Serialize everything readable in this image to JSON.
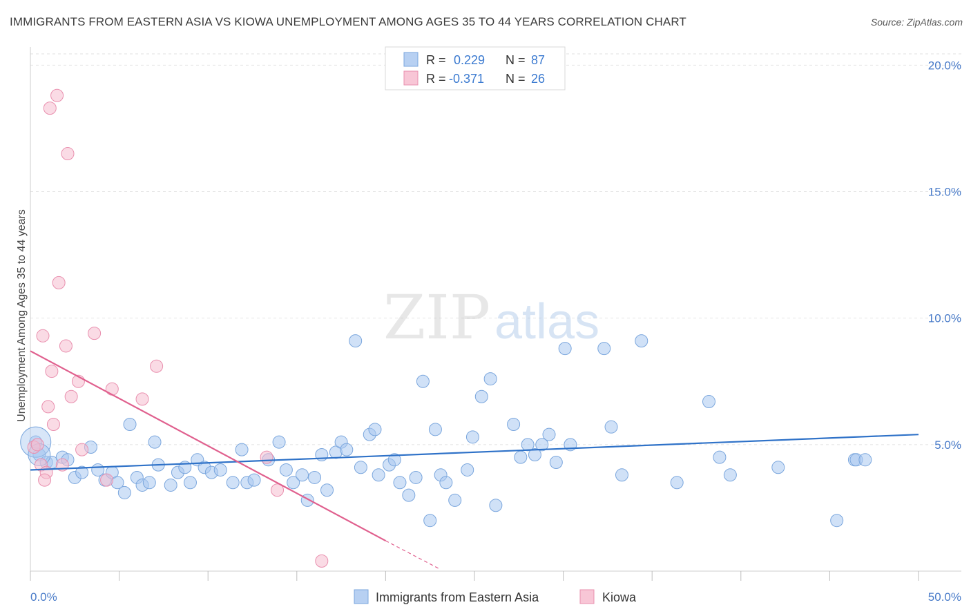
{
  "header": {
    "title": "IMMIGRANTS FROM EASTERN ASIA VS KIOWA UNEMPLOYMENT AMONG AGES 35 TO 44 YEARS CORRELATION CHART",
    "source": "Source: ZipAtlas.com"
  },
  "watermark": {
    "zip": "ZIP",
    "atlas": "atlas"
  },
  "legend_top": {
    "rows": [
      {
        "r_label": "R =",
        "r_value": "0.229",
        "n_label": "N =",
        "n_value": "87"
      },
      {
        "r_label": "R =",
        "r_value": "-0.371",
        "n_label": "N =",
        "n_value": "26"
      }
    ]
  },
  "chart_data": {
    "type": "scatter",
    "title": "IMMIGRANTS FROM EASTERN ASIA VS KIOWA UNEMPLOYMENT AMONG AGES 35 TO 44 YEARS CORRELATION CHART",
    "xlabel": "",
    "ylabel": "Unemployment Among Ages 35 to 44 years",
    "xlim": [
      0,
      50
    ],
    "ylim": [
      0,
      20.5
    ],
    "x_tick_labels": [
      "0.0%",
      "50.0%"
    ],
    "y_ticks": [
      5,
      10,
      15,
      20
    ],
    "y_tick_labels": [
      "5.0%",
      "10.0%",
      "15.0%",
      "20.0%"
    ],
    "grid": true,
    "legend_position": "bottom",
    "series": [
      {
        "name": "Immigrants from Eastern Asia",
        "color": "#a9c8f0",
        "stroke": "#7aa6dd",
        "line_color": "#2f72c8",
        "trend": {
          "x0": 0,
          "y0": 4.0,
          "x1": 50,
          "y1": 5.4
        },
        "points": [
          [
            0.3,
            5.1
          ],
          [
            0.5,
            4.6
          ],
          [
            0.9,
            4.3
          ],
          [
            1.2,
            4.3
          ],
          [
            1.8,
            4.5
          ],
          [
            2.1,
            4.4
          ],
          [
            2.5,
            3.7
          ],
          [
            2.9,
            3.9
          ],
          [
            3.4,
            4.9
          ],
          [
            3.8,
            4.0
          ],
          [
            4.2,
            3.6
          ],
          [
            4.6,
            3.9
          ],
          [
            4.9,
            3.5
          ],
          [
            5.3,
            3.1
          ],
          [
            5.6,
            5.8
          ],
          [
            6.0,
            3.7
          ],
          [
            6.3,
            3.4
          ],
          [
            6.7,
            3.5
          ],
          [
            7.0,
            5.1
          ],
          [
            7.2,
            4.2
          ],
          [
            7.9,
            3.4
          ],
          [
            8.3,
            3.9
          ],
          [
            8.7,
            4.1
          ],
          [
            9.0,
            3.5
          ],
          [
            9.4,
            4.4
          ],
          [
            9.8,
            4.1
          ],
          [
            10.2,
            3.9
          ],
          [
            10.7,
            4.0
          ],
          [
            11.4,
            3.5
          ],
          [
            11.9,
            4.8
          ],
          [
            12.2,
            3.5
          ],
          [
            12.6,
            3.6
          ],
          [
            13.4,
            4.4
          ],
          [
            14.0,
            5.1
          ],
          [
            14.4,
            4.0
          ],
          [
            14.8,
            3.5
          ],
          [
            15.3,
            3.8
          ],
          [
            15.6,
            2.8
          ],
          [
            16.0,
            3.7
          ],
          [
            16.4,
            4.6
          ],
          [
            16.7,
            3.2
          ],
          [
            17.2,
            4.7
          ],
          [
            17.5,
            5.1
          ],
          [
            17.8,
            4.8
          ],
          [
            18.3,
            9.1
          ],
          [
            18.6,
            4.1
          ],
          [
            19.1,
            5.4
          ],
          [
            19.4,
            5.6
          ],
          [
            19.6,
            3.8
          ],
          [
            20.2,
            4.2
          ],
          [
            20.5,
            4.4
          ],
          [
            20.8,
            3.5
          ],
          [
            21.3,
            3.0
          ],
          [
            21.7,
            3.7
          ],
          [
            22.1,
            7.5
          ],
          [
            22.5,
            2.0
          ],
          [
            22.8,
            5.6
          ],
          [
            23.1,
            3.8
          ],
          [
            23.4,
            3.5
          ],
          [
            23.9,
            2.8
          ],
          [
            24.6,
            4.0
          ],
          [
            24.9,
            5.3
          ],
          [
            25.4,
            6.9
          ],
          [
            25.9,
            7.6
          ],
          [
            26.2,
            2.6
          ],
          [
            27.2,
            5.8
          ],
          [
            27.6,
            4.5
          ],
          [
            28.0,
            5.0
          ],
          [
            28.4,
            4.6
          ],
          [
            28.8,
            5.0
          ],
          [
            29.2,
            5.4
          ],
          [
            29.6,
            4.3
          ],
          [
            30.1,
            8.8
          ],
          [
            30.4,
            5.0
          ],
          [
            32.3,
            8.8
          ],
          [
            32.7,
            5.7
          ],
          [
            33.3,
            3.8
          ],
          [
            34.4,
            9.1
          ],
          [
            36.4,
            3.5
          ],
          [
            38.2,
            6.7
          ],
          [
            38.8,
            4.5
          ],
          [
            39.4,
            3.8
          ],
          [
            42.1,
            4.1
          ],
          [
            45.4,
            2.0
          ],
          [
            46.4,
            4.4
          ],
          [
            46.5,
            4.4
          ],
          [
            47.0,
            4.4
          ]
        ],
        "big_points": [
          [
            0.3,
            5.1
          ],
          [
            0.5,
            4.6
          ]
        ]
      },
      {
        "name": "Kiowa",
        "color": "#f6bed0",
        "stroke": "#e98fae",
        "line_color": "#e0608e",
        "trend": {
          "x0": 0,
          "y0": 8.7,
          "x1": 20,
          "y1": 1.2
        },
        "trend_dash_to": {
          "x": 23,
          "y": 0.1
        },
        "points": [
          [
            0.2,
            4.9
          ],
          [
            0.4,
            5.0
          ],
          [
            0.6,
            4.2
          ],
          [
            0.9,
            3.9
          ],
          [
            0.7,
            9.3
          ],
          [
            0.8,
            3.6
          ],
          [
            1.0,
            6.5
          ],
          [
            1.1,
            18.3
          ],
          [
            1.2,
            7.9
          ],
          [
            1.3,
            5.8
          ],
          [
            1.5,
            18.8
          ],
          [
            1.6,
            11.4
          ],
          [
            1.8,
            4.2
          ],
          [
            2.0,
            8.9
          ],
          [
            2.1,
            16.5
          ],
          [
            2.3,
            6.9
          ],
          [
            2.7,
            7.5
          ],
          [
            2.9,
            4.8
          ],
          [
            3.6,
            9.4
          ],
          [
            4.3,
            3.6
          ],
          [
            4.6,
            7.2
          ],
          [
            6.3,
            6.8
          ],
          [
            7.1,
            8.1
          ],
          [
            13.3,
            4.5
          ],
          [
            13.9,
            3.2
          ],
          [
            16.4,
            0.4
          ]
        ]
      }
    ]
  },
  "legend_bottom": {
    "items": [
      {
        "label": "Immigrants from Eastern Asia"
      },
      {
        "label": "Kiowa"
      }
    ]
  }
}
